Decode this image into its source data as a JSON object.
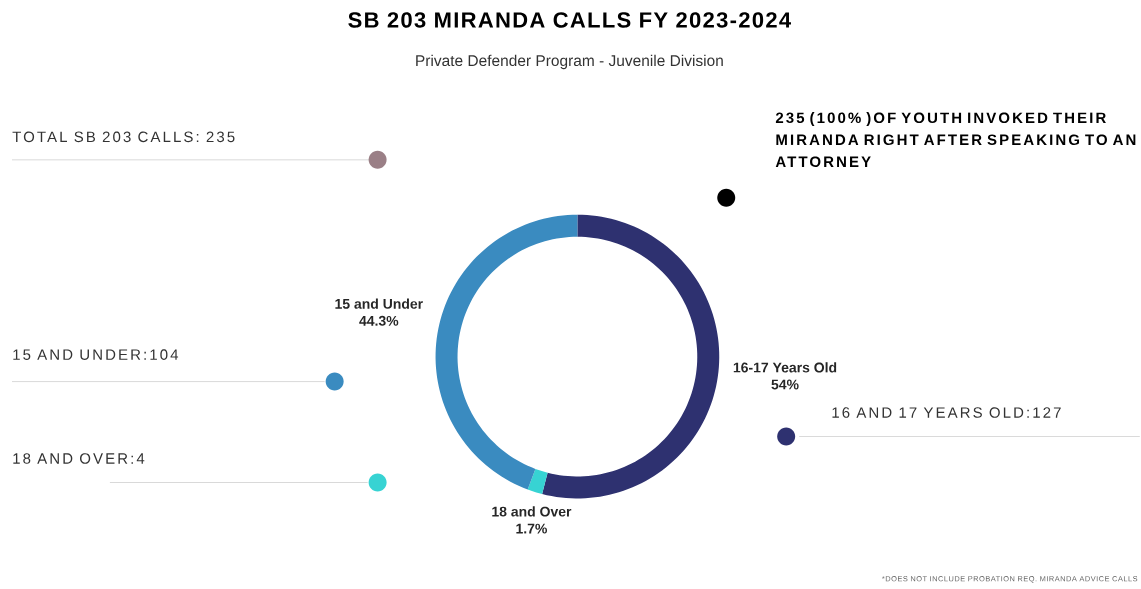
{
  "chart_data": {
    "type": "donut",
    "title": "SB 203 MIRANDA CALLS FY 2023-2024",
    "subtitle": "Private Defender Program - Juvenile Division",
    "categories": [
      "16-17 Years Old",
      "18 and Over",
      "15 and Under"
    ],
    "values": [
      54,
      1.7,
      44.3
    ],
    "value_labels": [
      "54%",
      "1.7%",
      "44.3%"
    ],
    "colors": [
      "#2e3170",
      "#37d3d3",
      "#3a8bc0"
    ],
    "annotations": [
      "TOTAL SB 203 CALLS: 235",
      "235 (100% )OF YOUTH INVOKED THEIR MIRANDA RIGHT AFTER SPEAKING TO AN ATTORNEY",
      "15 AND UNDER:104",
      "18 AND OVER:4",
      "16  AND 17 YEARS OLD:127",
      "*DOES NOT INCLUDE PROBATION REQ. MIRANDA ADVICE CALLS"
    ]
  }
}
